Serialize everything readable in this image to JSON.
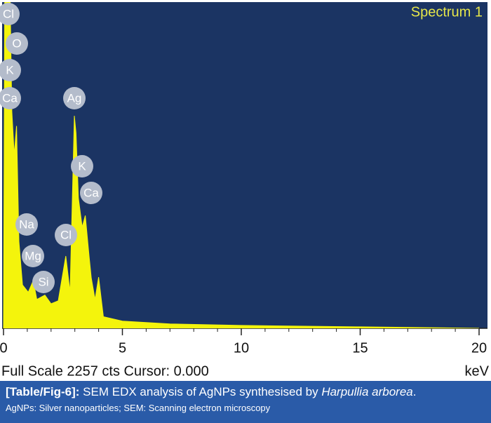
{
  "chart_data": {
    "type": "area",
    "title": "Spectrum 1",
    "x_label": "keV",
    "footer": "Full Scale 2257 cts Cursor: 0.000",
    "color": "#f4f40c",
    "background": "#1b3463",
    "xlim": [
      0,
      20
    ],
    "xticks": [
      0,
      5,
      10,
      15,
      20
    ],
    "ylim": [
      0,
      2257
    ],
    "x": [
      0,
      0.05,
      0.28,
      0.35,
      0.45,
      0.55,
      0.65,
      0.8,
      1.04,
      1.25,
      1.4,
      1.74,
      2.0,
      2.3,
      2.62,
      2.8,
      2.98,
      3.05,
      3.15,
      3.31,
      3.44,
      3.6,
      3.69,
      3.85,
      4.0,
      4.2,
      5,
      7,
      10,
      15,
      20
    ],
    "values": [
      0,
      2257,
      2257,
      1500,
      1200,
      1400,
      600,
      300,
      250,
      330,
      200,
      230,
      170,
      190,
      500,
      250,
      1470,
      1350,
      900,
      700,
      780,
      500,
      350,
      200,
      354,
      80,
      50,
      30,
      20,
      10,
      0
    ],
    "peak_labels": [
      "Cl",
      "O",
      "K",
      "Ca",
      "Ag",
      "K",
      "Ca",
      "Na",
      "Mg",
      "Cl",
      "Si"
    ]
  },
  "caption": {
    "label": "[Table/Fig-6]:",
    "text": " SEM EDX analysis of AgNPs synthesised by ",
    "species": "Harpullia arborea",
    "end": ".",
    "note": "AgNPs: Silver nanoparticles; SEM: Scanning electron microscopy"
  }
}
